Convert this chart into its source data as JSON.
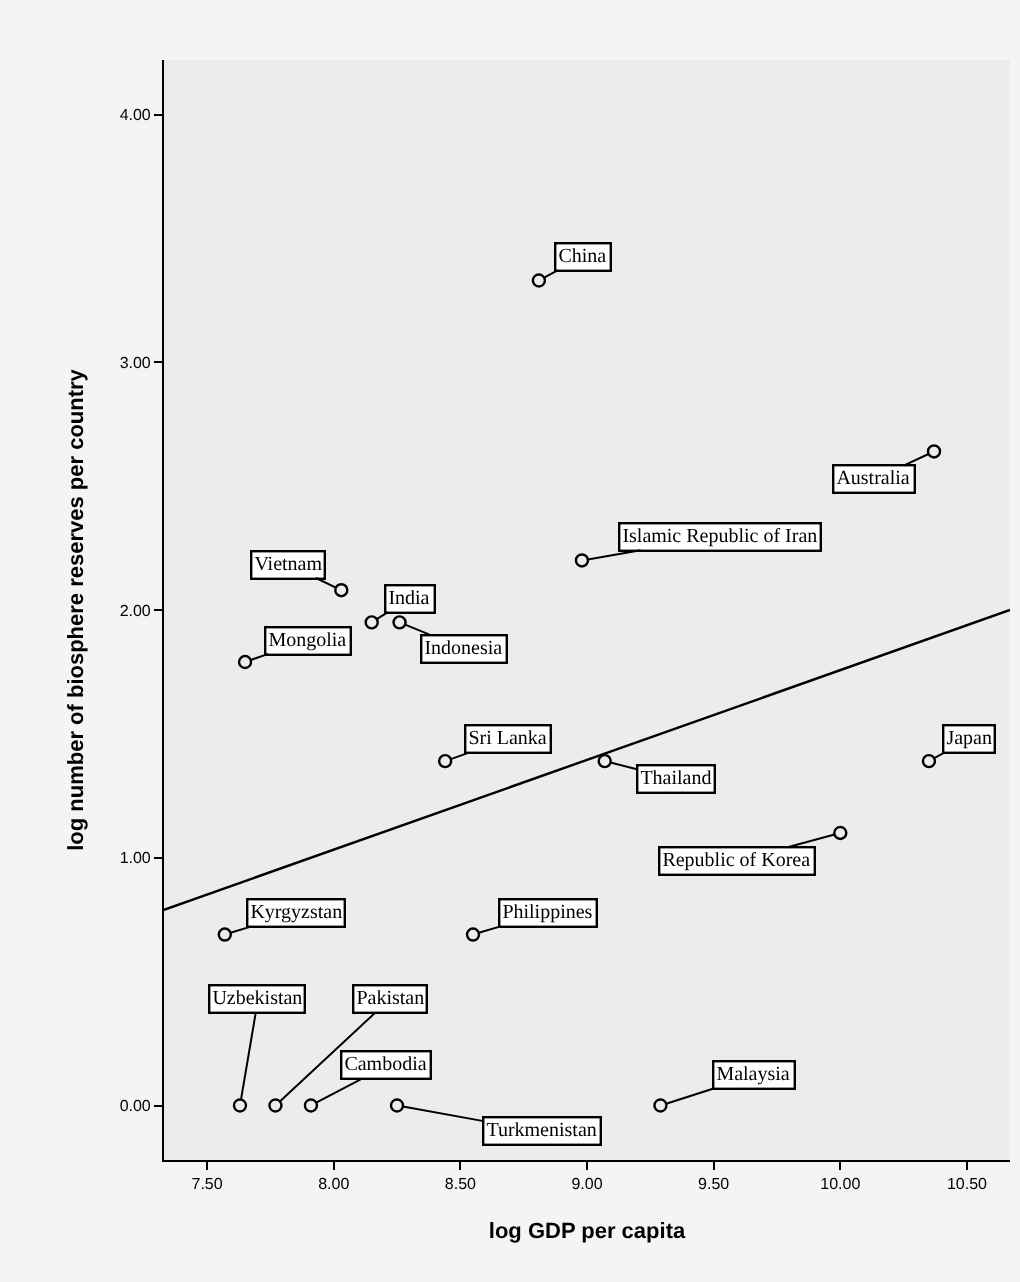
{
  "chart_data": {
    "type": "scatter",
    "xlabel": "log GDP per capita",
    "ylabel": "log number of biosphere reserves per country",
    "series": [
      {
        "color": "#000000",
        "marker": "circle",
        "x": [
          8.81,
          10.37,
          8.98,
          8.03,
          8.15,
          8.26,
          7.65,
          8.44,
          9.07,
          10.35,
          10.0,
          7.57,
          8.55,
          7.63,
          7.77,
          7.91,
          8.25,
          9.29
        ],
        "values": [
          3.33,
          2.64,
          2.2,
          2.08,
          1.95,
          1.95,
          1.79,
          1.39,
          1.39,
          1.39,
          1.1,
          0.69,
          0.69,
          0,
          0,
          0,
          0,
          0
        ]
      },
      {
        "type": "line",
        "color": "#000000",
        "marker": "none",
        "x": [
          7.33,
          10.67
        ],
        "values": [
          0.79,
          2.0
        ]
      }
    ],
    "annotations": [
      {
        "text": "China",
        "x": 8.81,
        "y": 3.33
      },
      {
        "text": "Australia",
        "x": 10.37,
        "y": 2.64
      },
      {
        "text": "Islamic Republic of Iran",
        "x": 8.98,
        "y": 2.2
      },
      {
        "text": "Vietnam",
        "x": 8.03,
        "y": 2.08
      },
      {
        "text": "India",
        "x": 8.15,
        "y": 1.95
      },
      {
        "text": "Indonesia",
        "x": 8.26,
        "y": 1.95
      },
      {
        "text": "Mongolia",
        "x": 7.65,
        "y": 1.79
      },
      {
        "text": "Sri Lanka",
        "x": 8.44,
        "y": 1.39
      },
      {
        "text": "Thailand",
        "x": 9.07,
        "y": 1.39
      },
      {
        "text": "Japan",
        "x": 10.35,
        "y": 1.39
      },
      {
        "text": "Republic of Korea",
        "x": 10.0,
        "y": 1.1
      },
      {
        "text": "Kyrgyzstan",
        "x": 7.57,
        "y": 0.69
      },
      {
        "text": "Philippines",
        "x": 8.55,
        "y": 0.69
      },
      {
        "text": "Uzbekistan",
        "x": 7.63,
        "y": 0
      },
      {
        "text": "Pakistan",
        "x": 7.77,
        "y": 0
      },
      {
        "text": "Cambodia",
        "x": 7.91,
        "y": 0
      },
      {
        "text": "Turkmenistan",
        "x": 8.25,
        "y": 0
      },
      {
        "text": "Malaysia",
        "x": 9.29,
        "y": 0
      }
    ],
    "xlim": [
      7.33,
      10.67
    ],
    "xticks": [
      {
        "value": 7.5,
        "label": "7.50"
      },
      {
        "value": 8.0,
        "label": "8.00"
      },
      {
        "value": 8.5,
        "label": "8.50"
      },
      {
        "value": 9.0,
        "label": "9.00"
      },
      {
        "value": 9.5,
        "label": "9.50"
      },
      {
        "value": 10.0,
        "label": "10.00"
      },
      {
        "value": 10.5,
        "label": "10.50"
      }
    ],
    "ylim": [
      -0.22,
      4.22
    ],
    "yticks": [
      {
        "value": 0,
        "label": "0.00"
      },
      {
        "value": 1,
        "label": "1.00"
      },
      {
        "value": 2,
        "label": "2.00"
      },
      {
        "value": 3,
        "label": "3.00"
      },
      {
        "value": 4,
        "label": "4.00"
      }
    ],
    "grid": false
  }
}
